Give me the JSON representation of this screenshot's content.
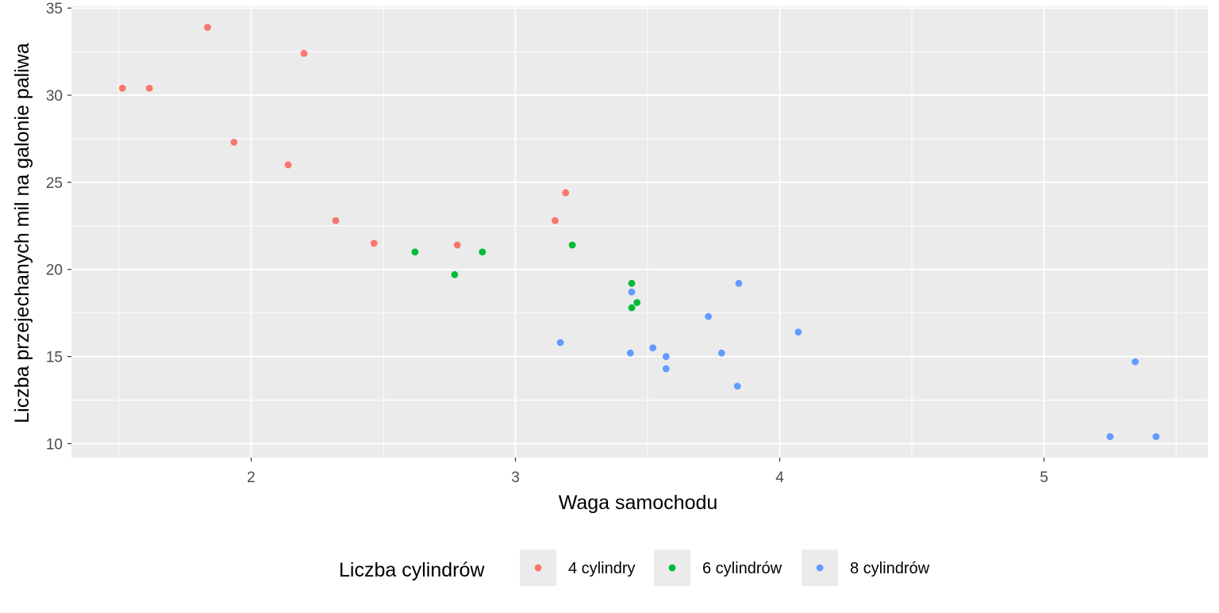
{
  "chart_data": {
    "type": "scatter",
    "xlabel": "Waga samochodu",
    "ylabel": "Liczba przejechanych mil na galonie paliwa",
    "xlim": [
      1.32,
      5.62
    ],
    "ylim": [
      9.2,
      35.1
    ],
    "x_ticks": [
      2,
      3,
      4,
      5
    ],
    "y_ticks": [
      10,
      15,
      20,
      25,
      30,
      35
    ],
    "grid": true,
    "legend": {
      "title": "Liczba cylindrów",
      "position": "bottom",
      "entries": [
        "4 cylindry",
        "6 cylindrów",
        "8 cylindrów"
      ]
    },
    "colors": {
      "panel": "#EBEBEB",
      "grid": "#FFFFFF",
      "4 cylindry": "#F8766D",
      "6 cylindrów": "#00BA38",
      "8 cylindrów": "#619CFF"
    },
    "series": [
      {
        "name": "4 cylindry",
        "points": [
          [
            1.513,
            30.4
          ],
          [
            1.615,
            30.4
          ],
          [
            1.835,
            33.9
          ],
          [
            1.935,
            27.3
          ],
          [
            2.14,
            26.0
          ],
          [
            2.2,
            32.4
          ],
          [
            2.32,
            22.8
          ],
          [
            2.465,
            21.5
          ],
          [
            2.78,
            21.4
          ],
          [
            3.15,
            22.8
          ],
          [
            3.19,
            24.4
          ]
        ]
      },
      {
        "name": "6 cylindrów",
        "points": [
          [
            2.62,
            21.0
          ],
          [
            2.77,
            19.7
          ],
          [
            2.875,
            21.0
          ],
          [
            3.215,
            21.4
          ],
          [
            3.44,
            19.2
          ],
          [
            3.44,
            17.8
          ],
          [
            3.46,
            18.1
          ]
        ]
      },
      {
        "name": "8 cylindrów",
        "points": [
          [
            3.17,
            15.8
          ],
          [
            3.435,
            15.2
          ],
          [
            3.44,
            18.7
          ],
          [
            3.52,
            15.5
          ],
          [
            3.57,
            15.0
          ],
          [
            3.57,
            14.3
          ],
          [
            3.73,
            17.3
          ],
          [
            3.78,
            15.2
          ],
          [
            3.84,
            13.3
          ],
          [
            3.845,
            19.2
          ],
          [
            4.07,
            16.4
          ],
          [
            5.25,
            10.4
          ],
          [
            5.345,
            14.7
          ],
          [
            5.424,
            10.4
          ]
        ]
      }
    ]
  }
}
